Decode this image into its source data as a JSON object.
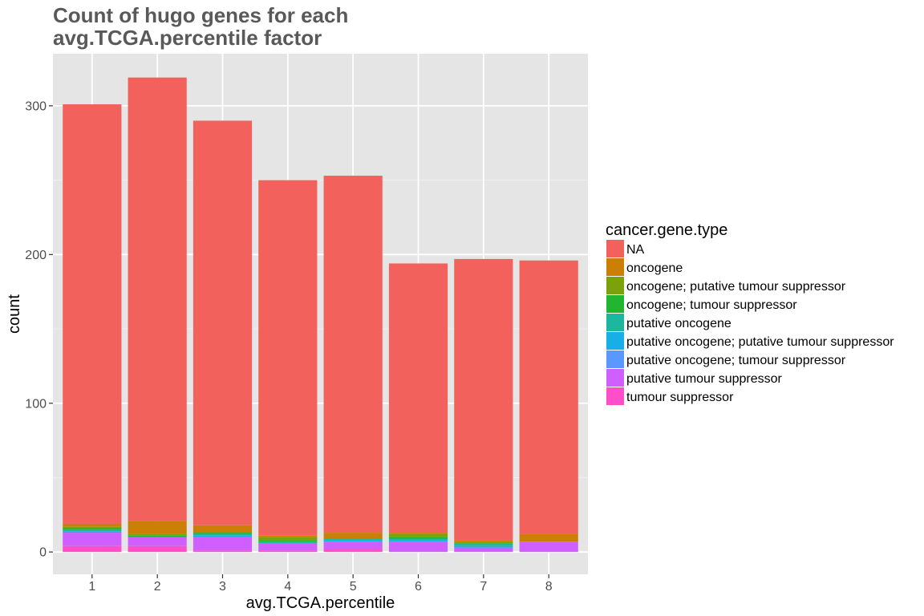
{
  "chart_data": {
    "type": "bar",
    "stacked": true,
    "title": "Count of hugo genes for each avg.TCGA.percentile factor",
    "title_lines": [
      "Count of hugo genes for each",
      "avg.TCGA.percentile factor"
    ],
    "xlabel": "avg.TCGA.percentile",
    "ylabel": "count",
    "categories": [
      "1",
      "2",
      "3",
      "4",
      "5",
      "6",
      "7",
      "8"
    ],
    "ylim": [
      -15,
      335
    ],
    "yticks": [
      0,
      100,
      200,
      300
    ],
    "ytick_labels": [
      "0",
      "100",
      "200",
      "300"
    ],
    "grid": true,
    "legend": {
      "title": "cancer.gene.type",
      "position": "right"
    },
    "series": [
      {
        "name": "tumour suppressor",
        "color": "#FF4EC7",
        "values": [
          4,
          4,
          1,
          1,
          2,
          0,
          0,
          0
        ]
      },
      {
        "name": "putative tumour suppressor",
        "color": "#CF5FFF",
        "values": [
          9,
          6,
          9,
          5,
          5,
          7,
          3,
          7
        ]
      },
      {
        "name": "putative oncogene; tumour suppressor",
        "color": "#5A98FF",
        "values": [
          0,
          0,
          0,
          0,
          0,
          0,
          0,
          0
        ]
      },
      {
        "name": "putative oncogene; putative tumour suppressor",
        "color": "#18AEE6",
        "values": [
          1,
          0,
          1,
          0,
          1,
          1,
          1,
          0
        ]
      },
      {
        "name": "putative oncogene",
        "color": "#1BB89F",
        "values": [
          1,
          0,
          1,
          1,
          1,
          1,
          2,
          0
        ]
      },
      {
        "name": "oncogene; tumour suppressor",
        "color": "#22B531",
        "values": [
          1,
          1,
          1,
          1,
          0,
          1,
          0,
          0
        ]
      },
      {
        "name": "oncogene; putative tumour suppressor",
        "color": "#7CA20B",
        "values": [
          1,
          1,
          0,
          2,
          0,
          2,
          1,
          0
        ]
      },
      {
        "name": "oncogene",
        "color": "#CC7F06",
        "values": [
          2,
          9,
          5,
          1,
          4,
          1,
          1,
          5
        ]
      },
      {
        "name": "NA",
        "color": "#F2615C",
        "values": [
          282,
          298,
          272,
          239,
          240,
          181,
          189,
          184
        ]
      }
    ],
    "legend_order": [
      "NA",
      "oncogene",
      "oncogene; putative tumour suppressor",
      "oncogene; tumour suppressor",
      "putative oncogene",
      "putative oncogene; putative tumour suppressor",
      "putative oncogene; tumour suppressor",
      "putative tumour suppressor",
      "tumour suppressor"
    ],
    "colors": {
      "panel_background": "#E5E5E5",
      "grid_major": "#FFFFFF",
      "grid_minor": "#F0F0F0",
      "title": "#595959"
    }
  }
}
